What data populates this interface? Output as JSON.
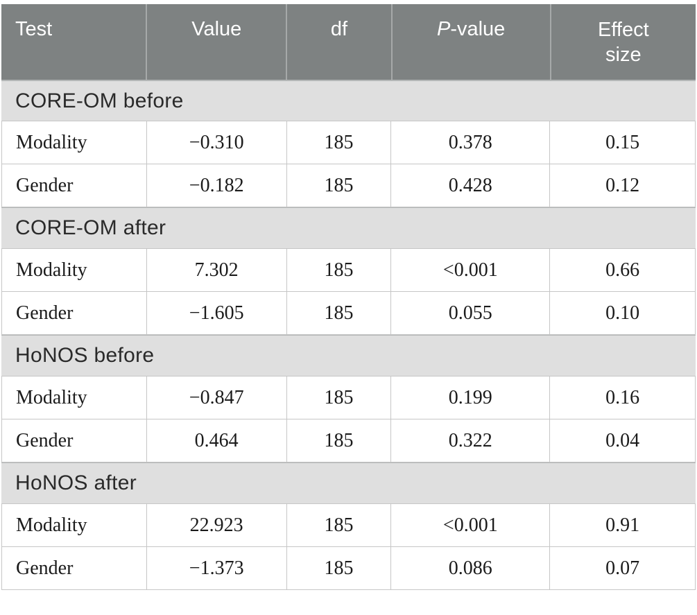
{
  "colors": {
    "header_bg": "#7e8282",
    "header_text": "#ffffff",
    "header_divider": "#a6a9a9",
    "section_bg": "#dfdfdf",
    "section_text": "#2a2a2a",
    "border": "#c6c6c6",
    "body_text": "#1b1b1b",
    "page_bg": "#ffffff"
  },
  "table": {
    "headers": {
      "test": "Test",
      "value": "Value",
      "df": "df",
      "p_italic": "P",
      "p_rest": "-value",
      "effect": "Effect size"
    },
    "sections": [
      {
        "title": "CORE-OM before",
        "rows": [
          {
            "test": "Modality",
            "value": "−0.310",
            "df": "185",
            "p": "0.378",
            "effect": "0.15"
          },
          {
            "test": "Gender",
            "value": "−0.182",
            "df": "185",
            "p": "0.428",
            "effect": "0.12"
          }
        ]
      },
      {
        "title": "CORE-OM after",
        "rows": [
          {
            "test": "Modality",
            "value": "7.302",
            "df": "185",
            "p": "<0.001",
            "effect": "0.66"
          },
          {
            "test": "Gender",
            "value": "−1.605",
            "df": "185",
            "p": "0.055",
            "effect": "0.10"
          }
        ]
      },
      {
        "title": "HoNOS before",
        "rows": [
          {
            "test": "Modality",
            "value": "−0.847",
            "df": "185",
            "p": "0.199",
            "effect": "0.16"
          },
          {
            "test": "Gender",
            "value": "0.464",
            "df": "185",
            "p": "0.322",
            "effect": "0.04"
          }
        ]
      },
      {
        "title": "HoNOS after",
        "rows": [
          {
            "test": "Modality",
            "value": "22.923",
            "df": "185",
            "p": "<0.001",
            "effect": "0.91"
          },
          {
            "test": "Gender",
            "value": "−1.373",
            "df": "185",
            "p": "0.086",
            "effect": "0.07"
          }
        ]
      }
    ]
  }
}
